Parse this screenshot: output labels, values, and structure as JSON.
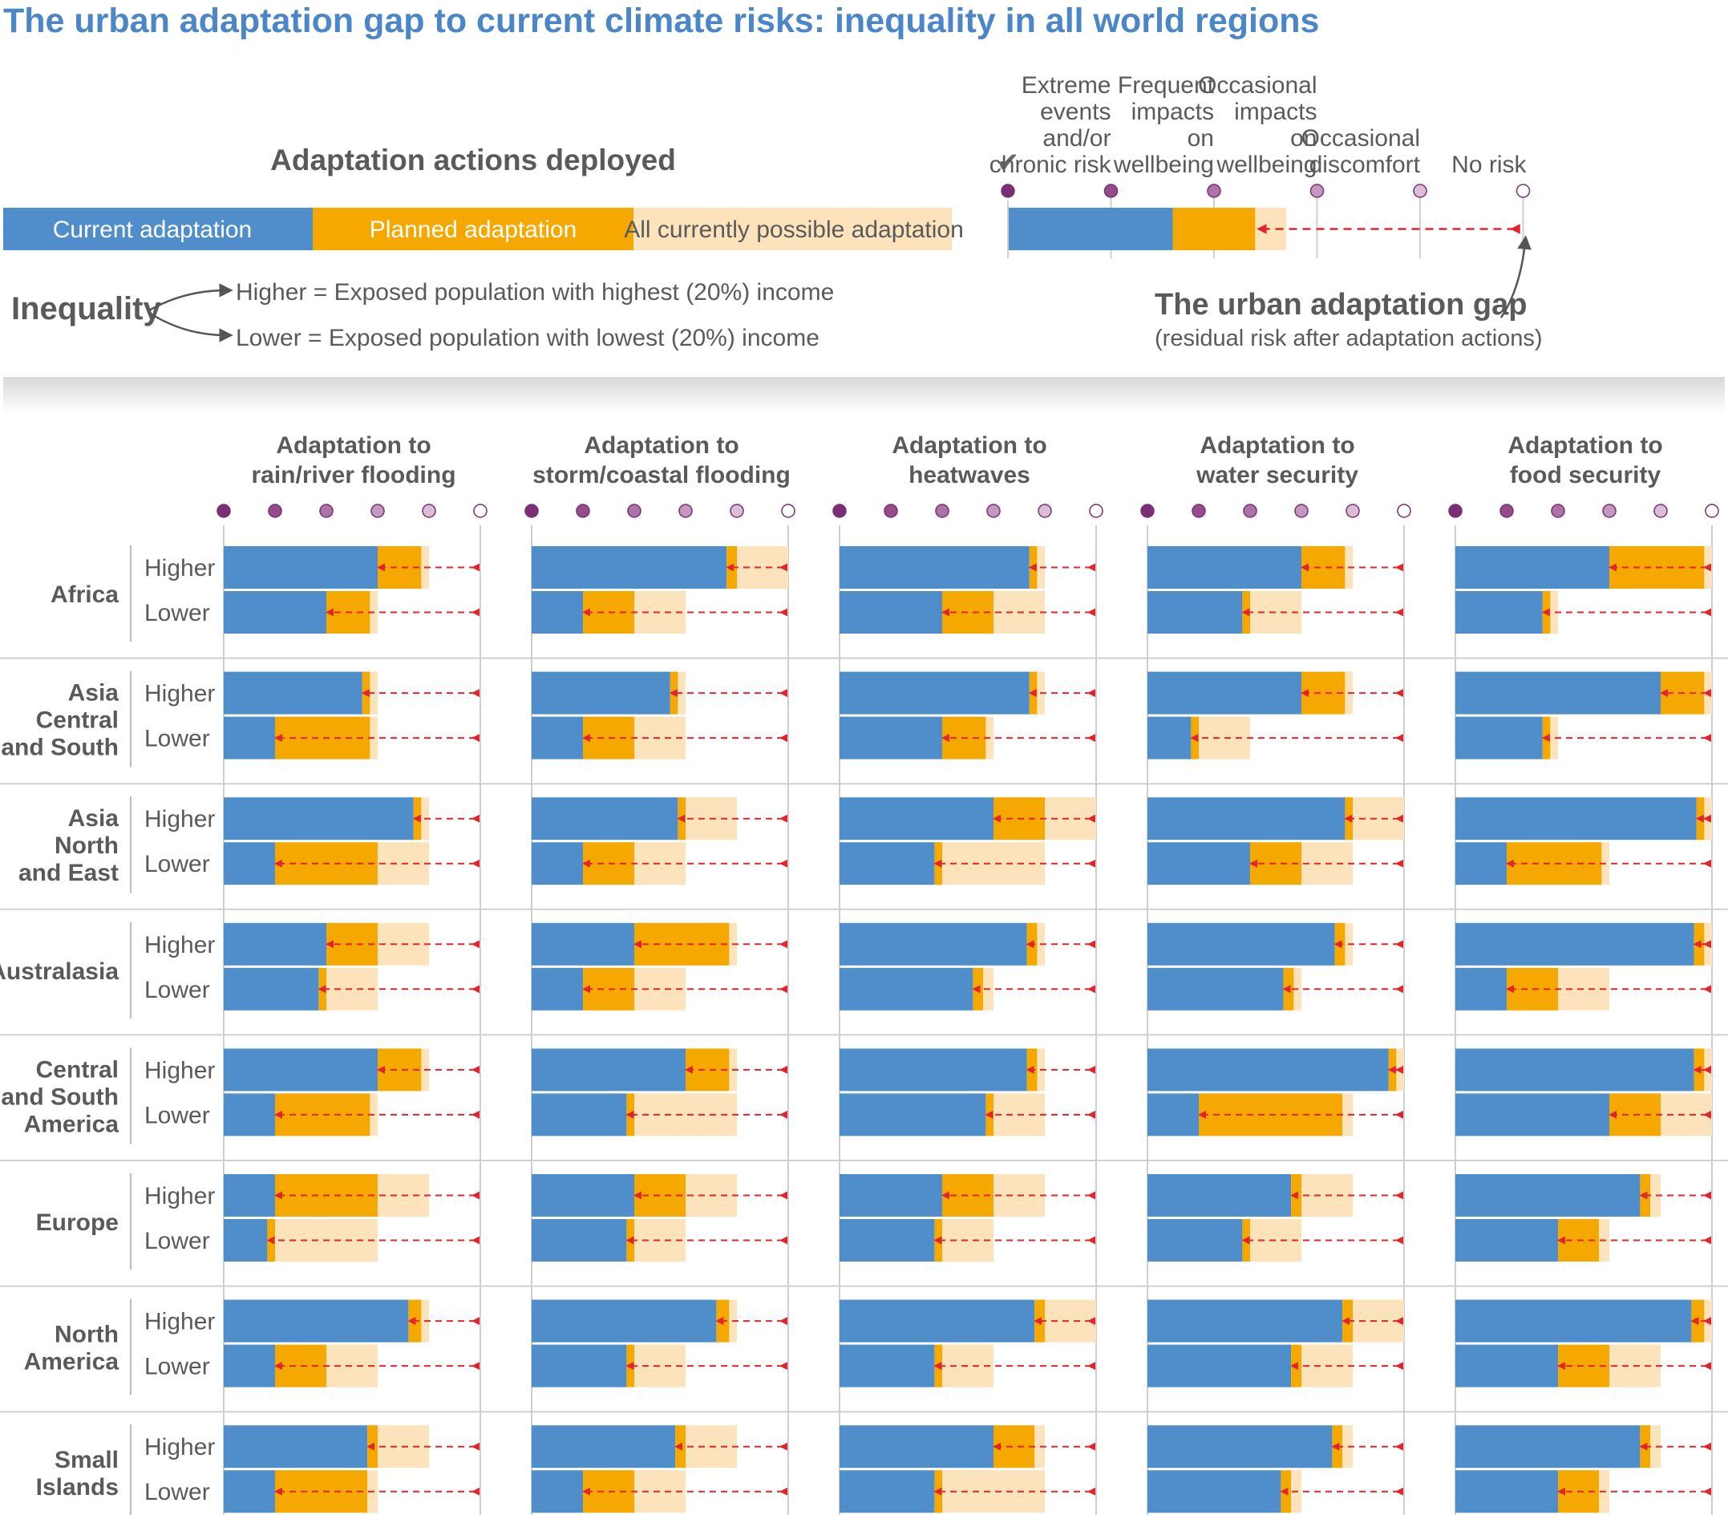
{
  "title": "The urban adaptation gap to current climate risks: inequality in all world regions",
  "legend": {
    "heading": "Adaptation actions deployed",
    "current": "Current adaptation",
    "planned": "Planned adaptation",
    "possible": "All currently possible adaptation",
    "inequality_label": "Inequality",
    "higher_desc": "Higher = Exposed population with highest (20%) income",
    "lower_desc": "Lower = Exposed population with lowest (20%) income",
    "gap_title": "The urban adaptation gap",
    "gap_sub": "(residual risk after adaptation actions)",
    "check": "✔",
    "risk_levels": [
      {
        "lines": [
          "Extreme",
          "events",
          "and/or",
          "chronic risk"
        ]
      },
      {
        "lines": [
          "Frequent",
          "impacts",
          "on",
          "wellbeing"
        ]
      },
      {
        "lines": [
          "Occasional",
          "impacts",
          "on",
          "wellbeing"
        ]
      },
      {
        "lines": [
          "Occasional",
          "discomfort"
        ]
      },
      {
        "lines": [
          "No risk"
        ]
      }
    ],
    "example": {
      "current": 1.6,
      "planned": 0.8,
      "possible": 0.3
    }
  },
  "colors": {
    "current": "#4f8ecb",
    "planned": "#f5a800",
    "possible": "#fde3bb",
    "gap": "#e3242b",
    "title": "#4a86c8",
    "text": "#5a5a5a",
    "dots": [
      "#7b2d75",
      "#954c8c",
      "#ad72a6",
      "#c598be",
      "#dcbdd8",
      "#ffffff"
    ]
  },
  "chart_data": {
    "type": "bar",
    "stacked": true,
    "scale": "risk levels 0 (extreme events and/or chronic risk) to 5 (no risk)",
    "xlim": [
      0,
      5
    ],
    "columns": [
      "Adaptation to\nrain/river flooding",
      "Adaptation to\nstorm/coastal flooding",
      "Adaptation to\nheatwaves",
      "Adaptation to\nwater security",
      "Adaptation to\nfood security"
    ],
    "row_labels": [
      "Higher",
      "Lower"
    ],
    "regions": [
      {
        "name": "Africa",
        "values": [
          [
            [
              3.0,
              0.85,
              0.15
            ],
            [
              2.0,
              0.85,
              0.15
            ]
          ],
          [
            [
              3.8,
              0.2,
              1.0
            ],
            [
              1.0,
              1.0,
              1.0
            ]
          ],
          [
            [
              3.7,
              0.15,
              0.15
            ],
            [
              2.0,
              1.0,
              1.0
            ]
          ],
          [
            [
              3.0,
              0.85,
              0.15
            ],
            [
              1.85,
              0.15,
              1.0
            ]
          ],
          [
            [
              3.0,
              1.85,
              0.15
            ],
            [
              1.7,
              0.15,
              0.15
            ]
          ]
        ]
      },
      {
        "name": "Asia\nCentral\nand South",
        "values": [
          [
            [
              2.7,
              0.15,
              0.15
            ],
            [
              1.0,
              1.85,
              0.15
            ]
          ],
          [
            [
              2.7,
              0.15,
              0.15
            ],
            [
              1.0,
              1.0,
              1.0
            ]
          ],
          [
            [
              3.7,
              0.15,
              0.15
            ],
            [
              2.0,
              0.85,
              0.15
            ]
          ],
          [
            [
              3.0,
              0.85,
              0.15
            ],
            [
              0.85,
              0.15,
              1.0
            ]
          ],
          [
            [
              4.0,
              0.85,
              0.15
            ],
            [
              1.7,
              0.15,
              0.15
            ]
          ]
        ]
      },
      {
        "name": "Asia\nNorth\nand East",
        "values": [
          [
            [
              3.7,
              0.15,
              0.15
            ],
            [
              1.0,
              2.0,
              1.0
            ]
          ],
          [
            [
              2.85,
              0.15,
              1.0
            ],
            [
              1.0,
              1.0,
              1.0
            ]
          ],
          [
            [
              3.0,
              1.0,
              1.0
            ],
            [
              1.85,
              0.15,
              2.0
            ]
          ],
          [
            [
              3.85,
              0.15,
              1.0
            ],
            [
              2.0,
              1.0,
              1.0
            ]
          ],
          [
            [
              4.7,
              0.15,
              0.15
            ],
            [
              1.0,
              1.85,
              0.15
            ]
          ]
        ]
      },
      {
        "name": "Australasia",
        "values": [
          [
            [
              2.0,
              1.0,
              1.0
            ],
            [
              1.85,
              0.15,
              1.0
            ]
          ],
          [
            [
              2.0,
              1.85,
              0.15
            ],
            [
              1.0,
              1.0,
              1.0
            ]
          ],
          [
            [
              3.65,
              0.2,
              0.15
            ],
            [
              2.6,
              0.2,
              0.2
            ]
          ],
          [
            [
              3.65,
              0.2,
              0.15
            ],
            [
              2.65,
              0.2,
              0.15
            ]
          ],
          [
            [
              4.65,
              0.2,
              0.15
            ],
            [
              1.0,
              1.0,
              1.0
            ]
          ]
        ]
      },
      {
        "name": "Central\nand South\nAmerica",
        "values": [
          [
            [
              3.0,
              0.85,
              0.15
            ],
            [
              1.0,
              1.85,
              0.15
            ]
          ],
          [
            [
              3.0,
              0.85,
              0.15
            ],
            [
              1.85,
              0.15,
              2.0
            ]
          ],
          [
            [
              3.65,
              0.2,
              0.15
            ],
            [
              2.85,
              0.15,
              1.0
            ]
          ],
          [
            [
              4.7,
              0.15,
              0.15
            ],
            [
              1.0,
              2.8,
              0.2
            ]
          ],
          [
            [
              4.65,
              0.2,
              0.15
            ],
            [
              3.0,
              1.0,
              1.0
            ]
          ]
        ]
      },
      {
        "name": "Europe",
        "values": [
          [
            [
              1.0,
              2.0,
              1.0
            ],
            [
              0.85,
              0.15,
              2.0
            ]
          ],
          [
            [
              2.0,
              1.0,
              1.0
            ],
            [
              1.85,
              0.15,
              1.0
            ]
          ],
          [
            [
              2.0,
              1.0,
              1.0
            ],
            [
              1.85,
              0.15,
              1.0
            ]
          ],
          [
            [
              2.8,
              0.2,
              1.0
            ],
            [
              1.85,
              0.15,
              1.0
            ]
          ],
          [
            [
              3.6,
              0.2,
              0.2
            ],
            [
              2.0,
              0.8,
              0.2
            ]
          ]
        ]
      },
      {
        "name": "North\nAmerica",
        "values": [
          [
            [
              3.6,
              0.25,
              0.15
            ],
            [
              1.0,
              1.0,
              1.0
            ]
          ],
          [
            [
              3.6,
              0.25,
              0.15
            ],
            [
              1.85,
              0.15,
              1.0
            ]
          ],
          [
            [
              3.8,
              0.2,
              1.0
            ],
            [
              1.85,
              0.15,
              1.0
            ]
          ],
          [
            [
              3.8,
              0.2,
              1.0
            ],
            [
              2.8,
              0.2,
              1.0
            ]
          ],
          [
            [
              4.6,
              0.25,
              0.15
            ],
            [
              2.0,
              1.0,
              1.0
            ]
          ]
        ]
      },
      {
        "name": "Small\nIslands",
        "values": [
          [
            [
              2.8,
              0.2,
              1.0
            ],
            [
              1.0,
              1.8,
              0.2
            ]
          ],
          [
            [
              2.8,
              0.2,
              1.0
            ],
            [
              1.0,
              1.0,
              1.0
            ]
          ],
          [
            [
              3.0,
              0.8,
              0.2
            ],
            [
              1.85,
              0.15,
              2.0
            ]
          ],
          [
            [
              3.6,
              0.2,
              0.2
            ],
            [
              2.6,
              0.2,
              0.2
            ]
          ],
          [
            [
              3.6,
              0.2,
              0.2
            ],
            [
              2.0,
              0.8,
              0.2
            ]
          ]
        ]
      }
    ]
  }
}
